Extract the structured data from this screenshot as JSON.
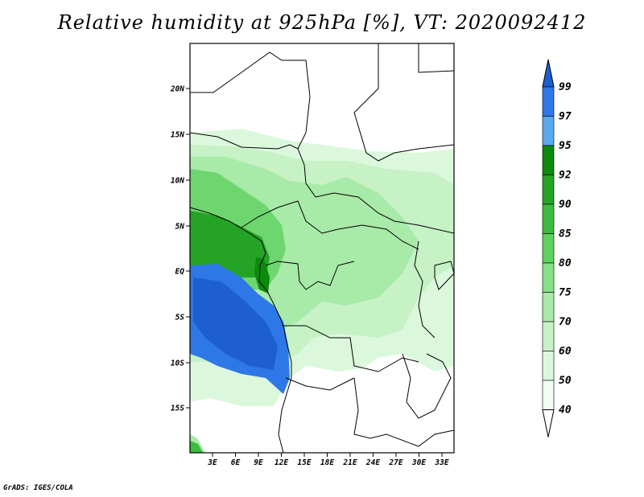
{
  "title": "Relative humidity at 925hPa [%], VT: 2020092412",
  "credit": "GrADS: IGES/COLA",
  "map": {
    "lat_ticks": [
      "20N",
      "15N",
      "10N",
      "5N",
      "EQ",
      "5S",
      "10S",
      "15S"
    ],
    "lon_ticks": [
      "3E",
      "6E",
      "9E",
      "12E",
      "15E",
      "18E",
      "21E",
      "24E",
      "27E",
      "30E",
      "33E"
    ]
  },
  "colorbar": {
    "labels": [
      "99",
      "97",
      "95",
      "92",
      "90",
      "85",
      "80",
      "75",
      "70",
      "60",
      "50",
      "40"
    ],
    "colors": [
      "#1e5fd0",
      "#2d78e6",
      "#5aa8f0",
      "#0c8a0c",
      "#24a324",
      "#3cbc3c",
      "#5ed25e",
      "#86e086",
      "#a8eaa8",
      "#c6f2c6",
      "#dcf8dc",
      "#f2fdf2",
      "#ffffff"
    ]
  }
}
